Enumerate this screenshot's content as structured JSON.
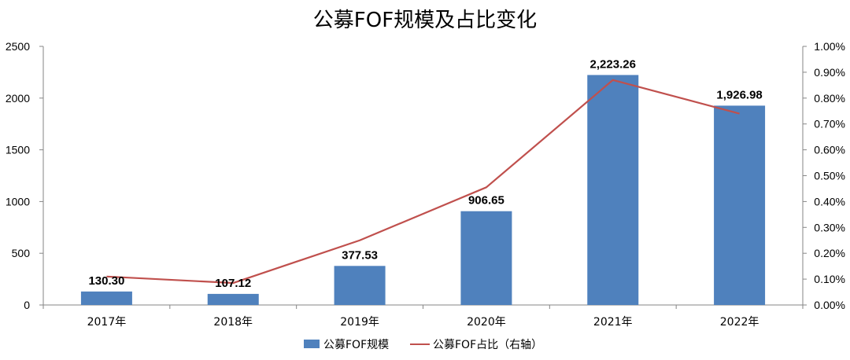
{
  "chart_data": {
    "type": "bar",
    "title": "公募FOF规模及占比变化",
    "categories": [
      "2017年",
      "2018年",
      "2019年",
      "2020年",
      "2021年",
      "2022年"
    ],
    "series": [
      {
        "name": "公募FOF规模",
        "kind": "bar",
        "axis": "left",
        "color": "#4f81bd",
        "values": [
          130.3,
          107.12,
          377.53,
          906.65,
          2223.26,
          1926.98
        ],
        "labels": [
          "130.30",
          "107.12",
          "377.53",
          "906.65",
          "2,223.26",
          "1,926.98"
        ]
      },
      {
        "name": "公募FOF占比（右轴）",
        "kind": "line",
        "axis": "right",
        "color": "#c0504d",
        "values": [
          0.11,
          0.085,
          0.25,
          0.455,
          0.87,
          0.74
        ]
      }
    ],
    "y_left": {
      "range": [
        0,
        2500
      ],
      "ticks": [
        0,
        500,
        1000,
        1500,
        2000,
        2500
      ],
      "tick_labels": [
        "0",
        "500",
        "1000",
        "1500",
        "2000",
        "2500"
      ]
    },
    "y_right": {
      "range": [
        0,
        1.0
      ],
      "ticks": [
        0,
        0.1,
        0.2,
        0.3,
        0.4,
        0.5,
        0.6,
        0.7,
        0.8,
        0.9,
        1.0
      ],
      "tick_labels": [
        "0.00%",
        "0.10%",
        "0.20%",
        "0.30%",
        "0.40%",
        "0.50%",
        "0.60%",
        "0.70%",
        "0.80%",
        "0.90%",
        "1.00%"
      ]
    },
    "grid": false,
    "legend_position": "bottom"
  }
}
